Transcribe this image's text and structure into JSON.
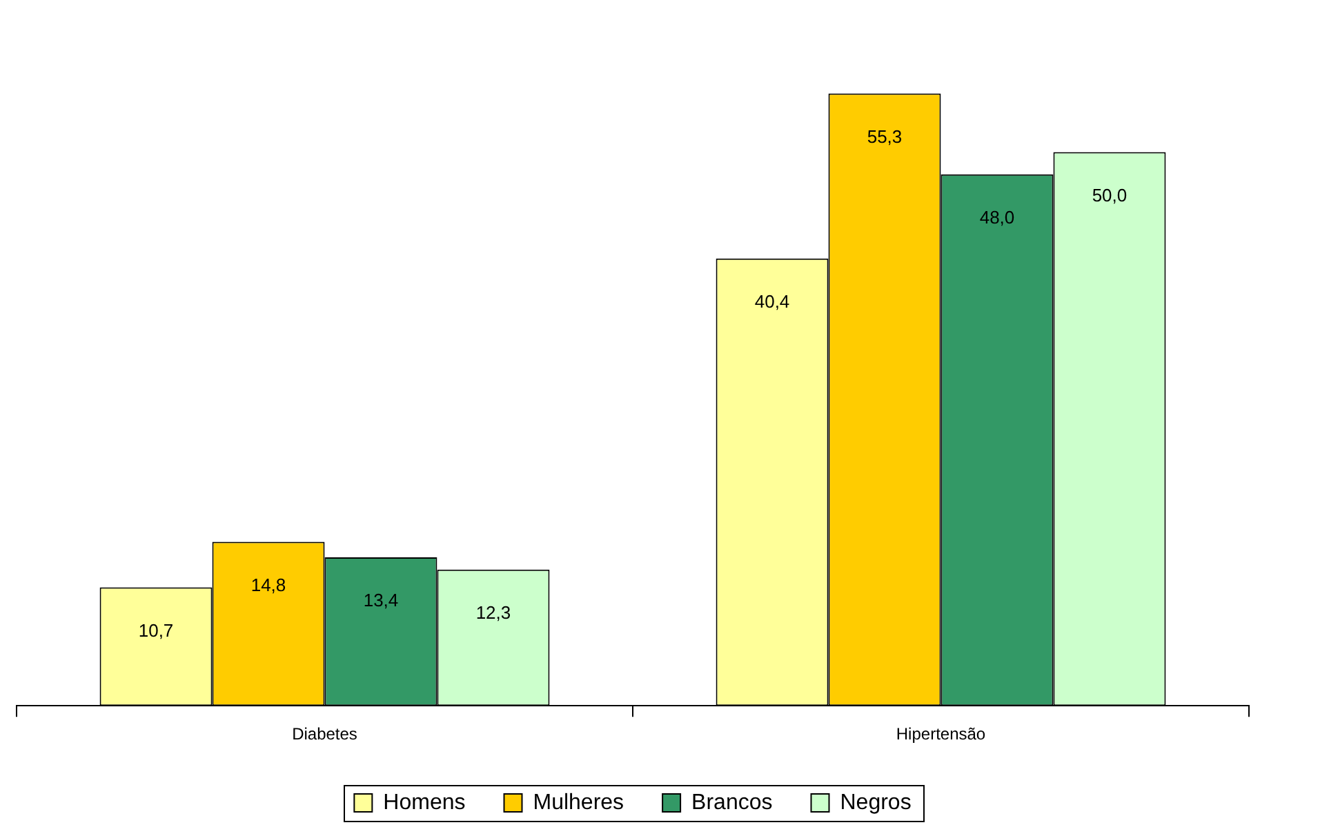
{
  "chart_data": {
    "type": "bar",
    "categories": [
      "Diabetes",
      "Hipertensão"
    ],
    "series": [
      {
        "name": "Homens",
        "color": "#ffff99",
        "values": [
          10.7,
          40.4
        ],
        "value_labels": [
          "10,7",
          "40,4"
        ]
      },
      {
        "name": "Mulheres",
        "color": "#ffcc00",
        "values": [
          14.8,
          55.3
        ],
        "value_labels": [
          "14,8",
          "55,3"
        ]
      },
      {
        "name": "Brancos",
        "color": "#339966",
        "values": [
          13.4,
          48.0
        ],
        "value_labels": [
          "13,4",
          "48,0"
        ]
      },
      {
        "name": "Negros",
        "color": "#ccffcc",
        "values": [
          12.3,
          50.0
        ],
        "value_labels": [
          "12,3",
          "50,0"
        ]
      }
    ],
    "legend": "bottom"
  }
}
